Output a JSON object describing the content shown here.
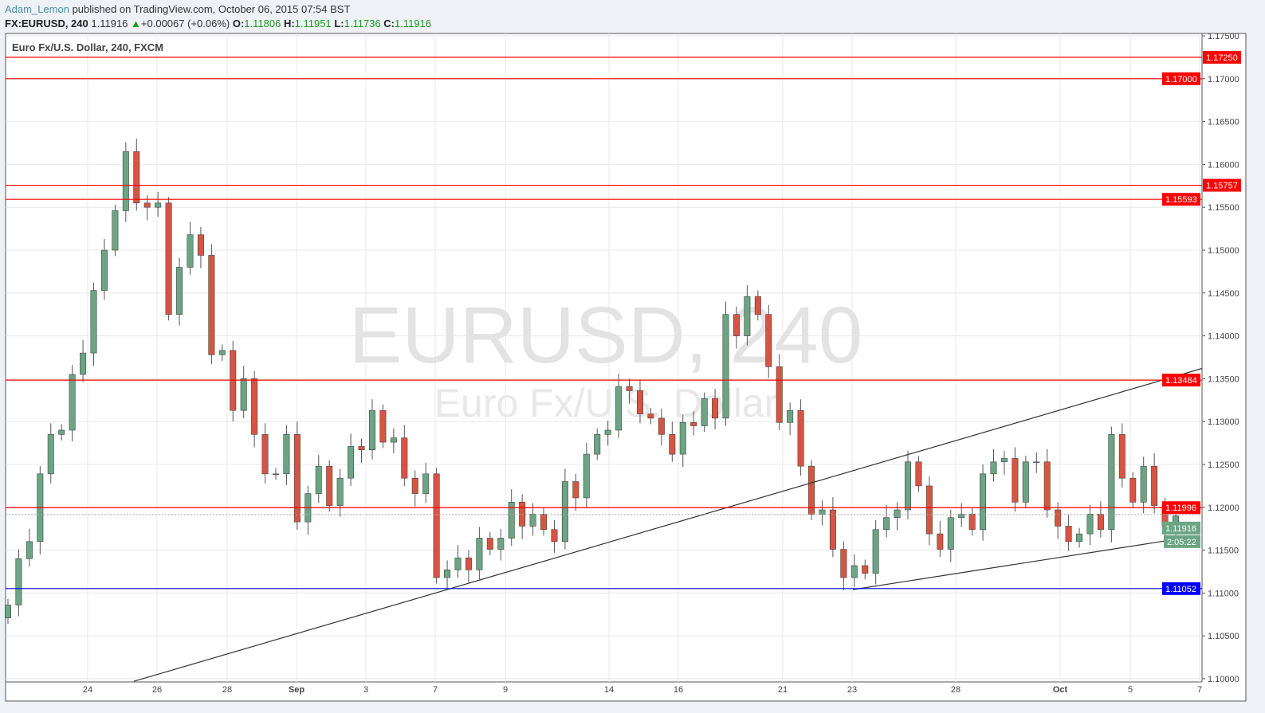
{
  "header": {
    "author": "Adam_Lemon",
    "published": "published on TradingView.com, October 06, 2015 07:54 BST",
    "symbol": "FX:EURUSD, 240",
    "last": "1.11916",
    "change": "+0.00067 (+0.06%)",
    "o_label": "O:",
    "o": "1.11806",
    "h_label": "H:",
    "h": "1.11951",
    "l_label": "L:",
    "l": "1.11736",
    "c_label": "C:",
    "c": "1.11916"
  },
  "chart_data": {
    "type": "candlestick",
    "title": "Euro Fx/U.S. Dollar, 240, FXCM",
    "watermark": "EURUSD, 240",
    "watermark_sub": "Euro Fx/U.S. Dollar",
    "ylim": [
      1.0995,
      1.1755
    ],
    "yticks": [
      "1.10000",
      "1.10500",
      "1.11000",
      "1.11500",
      "1.12000",
      "1.12500",
      "1.13000",
      "1.13500",
      "1.14000",
      "1.14500",
      "1.15000",
      "1.15500",
      "1.16000",
      "1.16500",
      "1.17000",
      "1.17500"
    ],
    "xticks": [
      "24",
      "26",
      "28",
      "Sep",
      "3",
      "7",
      "9",
      "14",
      "16",
      "21",
      "23",
      "28",
      "Oct",
      "5",
      "7"
    ],
    "grid": true,
    "colors": {
      "up": "#6ba583",
      "down": "#d75442",
      "resistance": "#ff0000",
      "support": "#0000ff",
      "trend": "#333333"
    },
    "closes": [
      1.1086,
      1.114,
      1.116,
      1.1239,
      1.1285,
      1.129,
      1.1355,
      1.138,
      1.1453,
      1.15,
      1.1546,
      1.1615,
      1.1555,
      1.155,
      1.1555,
      1.1425,
      1.148,
      1.1518,
      1.1494,
      1.1378,
      1.1383,
      1.1313,
      1.135,
      1.1285,
      1.1239,
      1.1239,
      1.1285,
      1.1183,
      1.1216,
      1.1248,
      1.1202,
      1.1234,
      1.1271,
      1.1267,
      1.1313,
      1.1276,
      1.1281,
      1.1234,
      1.1216,
      1.1239,
      1.1118,
      1.1127,
      1.1141,
      1.1127,
      1.1164,
      1.1151,
      1.1164,
      1.1206,
      1.1178,
      1.1192,
      1.1174,
      1.116,
      1.123,
      1.1211,
      1.1262,
      1.1285,
      1.129,
      1.1341,
      1.1336,
      1.1309,
      1.1304,
      1.1285,
      1.1262,
      1.1299,
      1.1295,
      1.1327,
      1.1304,
      1.1425,
      1.14,
      1.1446,
      1.1425,
      1.1364,
      1.1299,
      1.1313,
      1.1248,
      1.1192,
      1.1197,
      1.1151,
      1.1118,
      1.1132,
      1.1123,
      1.1174,
      1.1188,
      1.1197,
      1.1253,
      1.1225,
      1.1169,
      1.1151,
      1.1188,
      1.1192,
      1.1174,
      1.1239,
      1.1253,
      1.1257,
      1.1206,
      1.1253,
      1.1253,
      1.1197,
      1.1178,
      1.116,
      1.1169,
      1.1192,
      1.1174,
      1.1285,
      1.1234,
      1.1206,
      1.1248,
      1.1202,
      1.1178,
      1.119
    ],
    "horizontal_levels": [
      {
        "price": 1.1725,
        "label": "1.17250",
        "color": "#ff0000"
      },
      {
        "price": 1.17,
        "label": "1.17000",
        "color": "#ff0000"
      },
      {
        "price": 1.15757,
        "label": "1.15757",
        "color": "#ff0000"
      },
      {
        "price": 1.15593,
        "label": "1.15593",
        "color": "#ff0000"
      },
      {
        "price": 1.13484,
        "label": "1.13484",
        "color": "#ff0000"
      },
      {
        "price": 1.11996,
        "label": "1.11996",
        "color": "#ff0000"
      },
      {
        "price": 1.11052,
        "label": "1.11052",
        "color": "#0000ff"
      }
    ],
    "trendlines": [
      {
        "start_price": 1.0997,
        "end_price": 1.1362
      },
      {
        "start_price": 1.1104,
        "end_price": 1.1167
      }
    ],
    "current_price": {
      "price": 1.11916,
      "label": "1.11916",
      "countdown": "2:05:22",
      "color": "#6ba583"
    }
  }
}
